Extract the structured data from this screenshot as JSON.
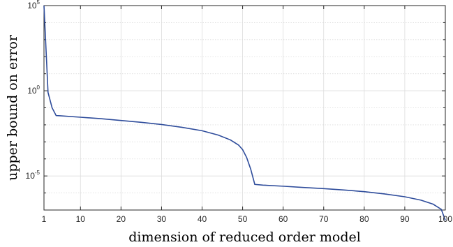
{
  "chart_data": {
    "type": "line",
    "title": "",
    "xlabel": "dimension of reduced order model",
    "ylabel": "upper bound on error",
    "x_ticks": [
      "1",
      "10",
      "20",
      "30",
      "40",
      "50",
      "60",
      "70",
      "80",
      "90",
      "100"
    ],
    "y_ticks": [
      {
        "base": "10",
        "exp": "5"
      },
      {
        "base": "10",
        "exp": "0"
      },
      {
        "base": "10",
        "exp": "-5"
      }
    ],
    "xlim": [
      1,
      100
    ],
    "y_scale": "log",
    "ylim": [
      1e-07,
      100000.0
    ],
    "grid": true,
    "colors": {
      "line": "#2e4c9b",
      "grid": "#dcdcdc",
      "axes": "#262626"
    },
    "series": [
      {
        "points": [
          [
            1,
            100000
          ],
          [
            2,
            0.8
          ],
          [
            3,
            0.1
          ],
          [
            4,
            0.035
          ],
          [
            5,
            0.034
          ],
          [
            10,
            0.028
          ],
          [
            15,
            0.023
          ],
          [
            20,
            0.018
          ],
          [
            25,
            0.014
          ],
          [
            30,
            0.0105
          ],
          [
            35,
            0.0072
          ],
          [
            40,
            0.0045
          ],
          [
            44,
            0.0025
          ],
          [
            47,
            0.0013
          ],
          [
            49,
            0.00065
          ],
          [
            50,
            0.00035
          ],
          [
            51,
            0.00012
          ],
          [
            52,
            2.5e-05
          ],
          [
            53,
            3.2e-06
          ],
          [
            55,
            2.9e-06
          ],
          [
            60,
            2.5e-06
          ],
          [
            65,
            2.1e-06
          ],
          [
            70,
            1.8e-06
          ],
          [
            75,
            1.5e-06
          ],
          [
            80,
            1.2e-06
          ],
          [
            85,
            8.8e-07
          ],
          [
            90,
            6e-07
          ],
          [
            94,
            3.8e-07
          ],
          [
            97,
            2.2e-07
          ],
          [
            99,
            1.1e-07
          ],
          [
            100,
            2.5e-08
          ]
        ]
      }
    ]
  }
}
